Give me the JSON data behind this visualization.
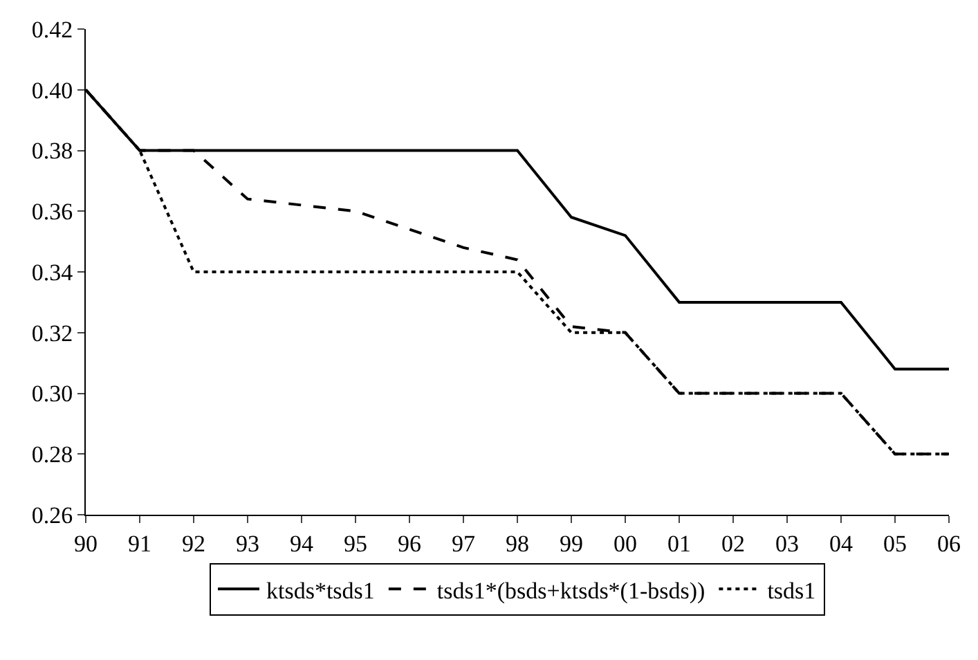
{
  "chart_data": {
    "type": "line",
    "categories": [
      "90",
      "91",
      "92",
      "93",
      "94",
      "95",
      "96",
      "97",
      "98",
      "99",
      "00",
      "01",
      "02",
      "03",
      "04",
      "05",
      "06"
    ],
    "series": [
      {
        "name": "ktsds*tsds1",
        "color": "#000000",
        "line_style": "solid",
        "values": [
          0.4,
          0.38,
          0.38,
          0.38,
          0.38,
          0.38,
          0.38,
          0.38,
          0.38,
          0.358,
          0.352,
          0.33,
          0.33,
          0.33,
          0.33,
          0.308,
          0.308
        ]
      },
      {
        "name": "tsds1*(bsds+ktsds*(1-bsds))",
        "color": "#000000",
        "line_style": "dashed",
        "values": [
          0.4,
          0.38,
          0.38,
          0.364,
          0.362,
          0.36,
          0.354,
          0.348,
          0.344,
          0.322,
          0.32,
          0.3,
          0.3,
          0.3,
          0.3,
          0.28,
          0.28
        ]
      },
      {
        "name": "tsds1",
        "color": "#000000",
        "line_style": "dotted",
        "values": [
          0.4,
          0.38,
          0.34,
          0.34,
          0.34,
          0.34,
          0.34,
          0.34,
          0.34,
          0.32,
          0.32,
          0.3,
          0.3,
          0.3,
          0.3,
          0.28,
          0.28
        ]
      }
    ],
    "ylim": [
      0.26,
      0.42
    ],
    "yticks": [
      {
        "value": 0.26,
        "label": "0.26"
      },
      {
        "value": 0.28,
        "label": "0.28"
      },
      {
        "value": 0.3,
        "label": "0.30"
      },
      {
        "value": 0.32,
        "label": "0.32"
      },
      {
        "value": 0.34,
        "label": "0.34"
      },
      {
        "value": 0.36,
        "label": "0.36"
      },
      {
        "value": 0.38,
        "label": "0.38"
      },
      {
        "value": 0.4,
        "label": "0.40"
      },
      {
        "value": 0.42,
        "label": "0.42"
      }
    ],
    "grid": false,
    "legend": "bottom"
  }
}
